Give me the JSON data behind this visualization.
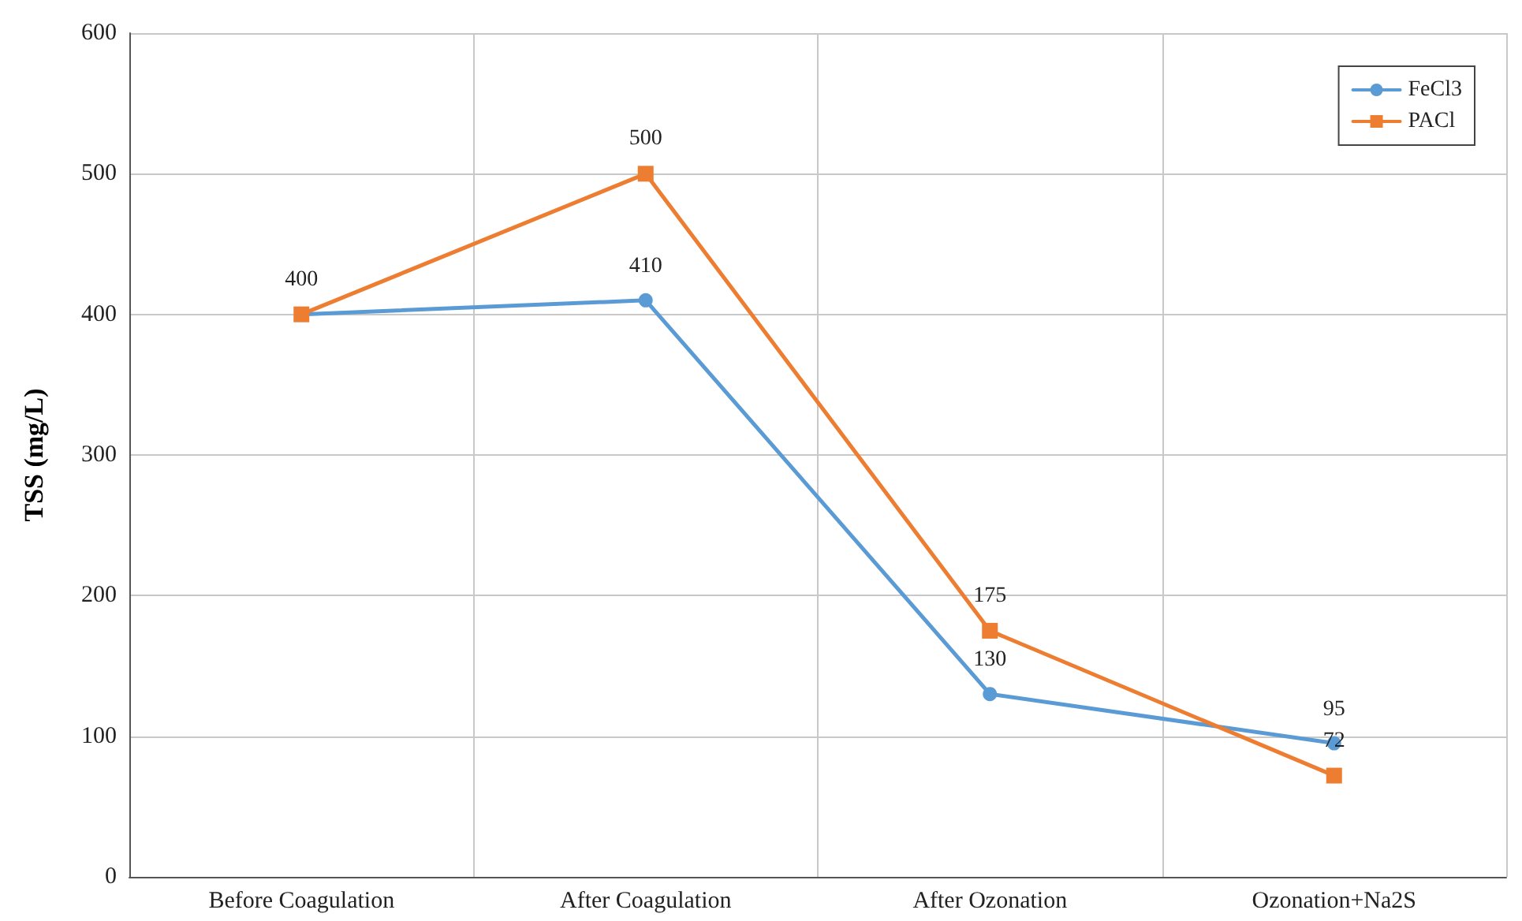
{
  "chart_data": {
    "type": "line",
    "ylabel": "TSS (mg/L)",
    "categories": [
      "Before Coagulation",
      "After Coagulation",
      "After Ozonation",
      "Ozonation+Na2S"
    ],
    "series": [
      {
        "name": "FeCl3",
        "color": "#5b9bd5",
        "marker": "circle",
        "values": [
          400,
          410,
          130,
          95
        ],
        "value_labels": [
          null,
          "410",
          "130",
          "95"
        ]
      },
      {
        "name": "PACl",
        "color": "#ed7d31",
        "marker": "square",
        "values": [
          400,
          500,
          175,
          72
        ],
        "value_labels": [
          "400",
          "500",
          "175",
          "72"
        ]
      }
    ],
    "ylim": [
      0,
      600
    ],
    "yticks": [
      0,
      100,
      200,
      300,
      400,
      500,
      600
    ],
    "grid": true,
    "legend": "top right",
    "line_style": "solid"
  }
}
